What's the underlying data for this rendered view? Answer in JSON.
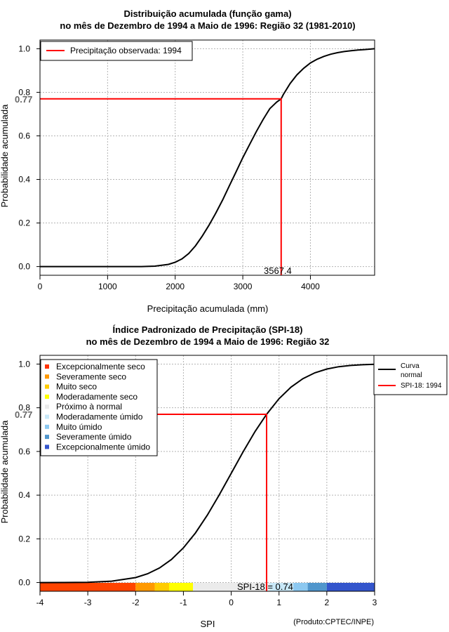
{
  "chart_data": [
    {
      "type": "line",
      "title_line1": "Distribuição acumulada (função gama)",
      "title_line2": "no mês de Dezembro de 1994 a Maio de 1996: Região 32 (1981-2010)",
      "xlabel": "Precipitação acumulada (mm)",
      "ylabel": "Probabilidade acumulada",
      "xlim": [
        0,
        4950
      ],
      "ylim": [
        -0.04,
        1.04
      ],
      "xticks": [
        0,
        1000,
        2000,
        3000,
        4000
      ],
      "yticks": [
        0.0,
        0.2,
        0.4,
        0.6,
        0.8,
        1.0
      ],
      "ytick_labels": [
        "0.0",
        "0.2",
        "0.4",
        "0.6",
        "0.8",
        "1.0"
      ],
      "grid": true,
      "legend_position": "top-left",
      "series": [
        {
          "name": "curve",
          "color": "#000000",
          "x": [
            0,
            500,
            1000,
            1500,
            1700,
            1900,
            2000,
            2100,
            2200,
            2300,
            2400,
            2500,
            2600,
            2700,
            2800,
            2900,
            3000,
            3100,
            3200,
            3300,
            3400,
            3500,
            3567,
            3600,
            3700,
            3800,
            3900,
            4000,
            4100,
            4200,
            4300,
            4400,
            4500,
            4600,
            4700,
            4800,
            4950
          ],
          "y": [
            0.0,
            0.0,
            0.0,
            0.0,
            0.002,
            0.01,
            0.02,
            0.035,
            0.06,
            0.095,
            0.14,
            0.19,
            0.245,
            0.305,
            0.37,
            0.435,
            0.5,
            0.56,
            0.62,
            0.675,
            0.725,
            0.755,
            0.77,
            0.79,
            0.84,
            0.88,
            0.91,
            0.935,
            0.952,
            0.965,
            0.975,
            0.982,
            0.987,
            0.991,
            0.994,
            0.996,
            1.0
          ]
        }
      ],
      "legend": [
        {
          "label": "Precipitação observada: 1994",
          "color": "#ff0000"
        }
      ],
      "marker": {
        "x": 3567.4,
        "y": 0.77,
        "x_label": "3567.4",
        "y_label": "0.77",
        "color": "#ff0000"
      }
    },
    {
      "type": "line",
      "title_line1": "Índice Padronizado de Precipitação (SPI-18)",
      "title_line2": "no mês de Dezembro de 1994 a Maio de 1996: Região 32",
      "xlabel": "SPI",
      "ylabel": "Probabilidade acumulada",
      "xlim": [
        -4,
        3
      ],
      "ylim": [
        -0.04,
        1.04
      ],
      "xticks": [
        -4,
        -3,
        -2,
        -1,
        0,
        1,
        2,
        3
      ],
      "xtick_labels": [
        "-4",
        "-3",
        "-2",
        "-1",
        "0",
        "1",
        "2",
        "3"
      ],
      "yticks": [
        0.0,
        0.2,
        0.4,
        0.6,
        0.8,
        1.0
      ],
      "ytick_labels": [
        "0.0",
        "0.2",
        "0.4",
        "0.6",
        "0.8",
        "1.0"
      ],
      "grid": true,
      "series": [
        {
          "name": "Curva normal",
          "color": "#000000",
          "x": [
            -4,
            -3.5,
            -3,
            -2.5,
            -2,
            -1.75,
            -1.5,
            -1.25,
            -1,
            -0.75,
            -0.5,
            -0.25,
            0,
            0.25,
            0.5,
            0.74,
            1,
            1.25,
            1.5,
            1.75,
            2,
            2.25,
            2.5,
            2.75,
            3
          ],
          "y": [
            0.0,
            0.0002,
            0.0013,
            0.0062,
            0.0228,
            0.0401,
            0.0668,
            0.1056,
            0.1587,
            0.2266,
            0.3085,
            0.4013,
            0.5,
            0.5987,
            0.6915,
            0.77,
            0.8413,
            0.8944,
            0.9332,
            0.9599,
            0.9772,
            0.9878,
            0.9938,
            0.997,
            0.9987
          ]
        }
      ],
      "legend_categories_position": "top-left",
      "legend_categories": [
        {
          "label": "Excepcionalmente seco",
          "color": "#ff3300"
        },
        {
          "label": "Severamente seco",
          "color": "#ff9900"
        },
        {
          "label": "Muito seco",
          "color": "#ffcc00"
        },
        {
          "label": "Moderadamente seco",
          "color": "#ffff00"
        },
        {
          "label": "Próximo à normal",
          "color": "#ebebeb"
        },
        {
          "label": "Moderadamente úmido",
          "color": "#c8e8f8"
        },
        {
          "label": "Muito úmido",
          "color": "#8cc8f0"
        },
        {
          "label": "Severamente úmido",
          "color": "#5096cc"
        },
        {
          "label": "Excepcionalmente úmido",
          "color": "#3355cc"
        }
      ],
      "legend_lines_position": "top-right",
      "legend_lines": [
        {
          "label_line1": "Curva",
          "label_line2": "normal",
          "color": "#000000"
        },
        {
          "label_line1": "SPI-18: 1994",
          "label_line2": "",
          "color": "#ff0000"
        }
      ],
      "category_bands": [
        {
          "from": -4,
          "to": -2,
          "color": "#ff4400"
        },
        {
          "from": -2,
          "to": -1.6,
          "color": "#ff9900"
        },
        {
          "from": -1.6,
          "to": -1.3,
          "color": "#ffcc00"
        },
        {
          "from": -1.3,
          "to": -0.8,
          "color": "#ffff00"
        },
        {
          "from": -0.8,
          "to": 0.8,
          "color": "#ebebeb"
        },
        {
          "from": 0.8,
          "to": 1.3,
          "color": "#c8e8f8"
        },
        {
          "from": 1.3,
          "to": 1.6,
          "color": "#8cc8f0"
        },
        {
          "from": 1.6,
          "to": 2,
          "color": "#5096cc"
        },
        {
          "from": 2,
          "to": 3,
          "color": "#3355cc"
        }
      ],
      "marker": {
        "x": 0.74,
        "y": 0.77,
        "x_label": "SPI-18 = 0.74",
        "y_label": "0.77",
        "color": "#ff0000"
      },
      "credit": "(Produto:CPTEC/INPE)"
    }
  ]
}
